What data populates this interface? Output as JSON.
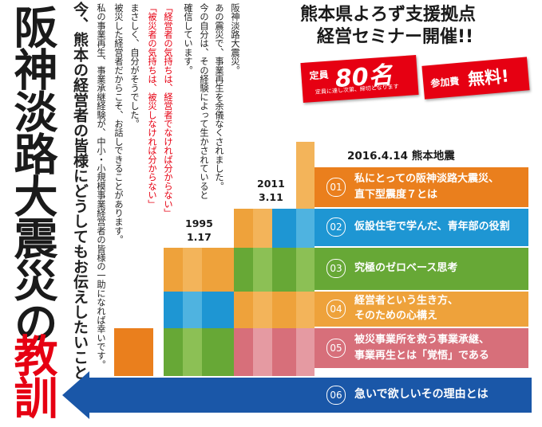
{
  "title": {
    "main": "阪神淡路大震災の",
    "main_red": "教訓",
    "subtitle": "今、熊本の経営者の皆様にどうしてもお伝えしたいこと"
  },
  "body_columns": [
    "阪神淡路大震災。",
    "あの震災で、事業再生を余儀なくされました。",
    "今の自分は、その経験によって生かされていると",
    "確信しています。",
    "「経営者の気持ちは、経営者でなければ分からない」",
    "「被災者の気持ちは、被災しなければ分からない」",
    "まさしく、自分がそうでした。",
    "被災した経営者だからこそ、お話しできることがあります。",
    "私の事業再生、事業承継経験が、中小・小規模事業経営者の皆様の一助になれば幸いです。"
  ],
  "header": {
    "line1": "熊本県よろず支援拠点",
    "line2": "経営セミナー開催!!"
  },
  "badges": {
    "capacity_label": "定員",
    "capacity_value": "80名",
    "capacity_note": "定員に達し次第、締切となります",
    "fee_label": "参加費",
    "fee_value": "無料!"
  },
  "timeline": {
    "y1995": "1995",
    "y1995_date": "1.17",
    "y2011": "2011",
    "y2011_date": "3.11",
    "y2016": "2016.4.14 熊本地震"
  },
  "topics": [
    {
      "num": "01",
      "line1": "私にとっての阪神淡路大震災、",
      "line2": "直下型震度７とは",
      "color": "#ea7f1d"
    },
    {
      "num": "02",
      "line1": "仮設住宅で学んだ、青年部の役割",
      "line2": "",
      "color": "#1e96d3"
    },
    {
      "num": "03",
      "line1": "究極のゼロベース思考",
      "line2": "",
      "color": "#67a836"
    },
    {
      "num": "04",
      "line1": "経営者という生き方、",
      "line2": "そのための心構え",
      "color": "#eea23b"
    },
    {
      "num": "05",
      "line1": "被災事業所を救う事業承継、",
      "line2": "事業再生とは「覚悟」である",
      "color": "#d76f7a"
    },
    {
      "num": "06",
      "line1": "急いで欲しいその理由とは",
      "line2": "",
      "color": "#1a57a8"
    }
  ],
  "colors": {
    "red": "#e60012",
    "orange": "#ea7f1d",
    "blue": "#1e96d3",
    "green": "#67a836",
    "lightorange": "#eea23b",
    "pink": "#d76f7a",
    "navy": "#1a57a8"
  }
}
